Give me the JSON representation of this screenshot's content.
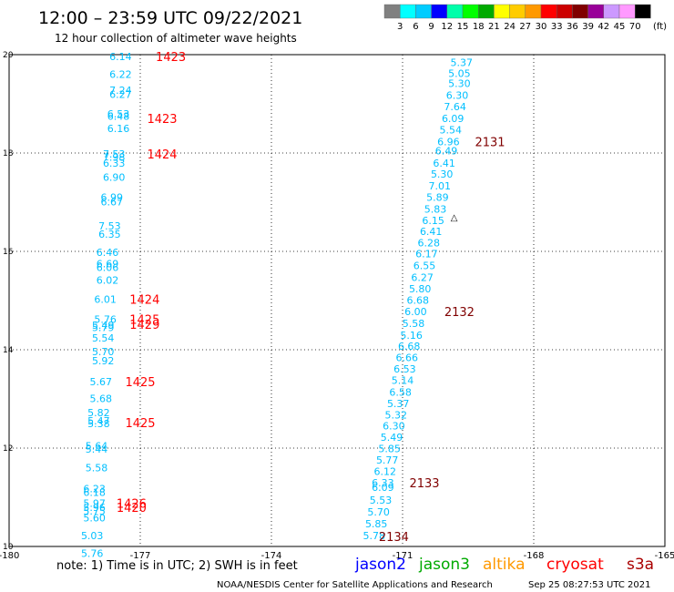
{
  "chart_data": {
    "type": "scatter",
    "title": "12:00 – 23:59 UTC 09/22/2021",
    "subtitle": "12 hour collection of altimeter wave heights",
    "xlim": [
      -180,
      -165
    ],
    "ylim": [
      10,
      20
    ],
    "x_ticks": [
      "-180",
      "-177",
      "-174",
      "-171",
      "-168",
      "-165"
    ],
    "y_ticks": [
      "10",
      "12",
      "14",
      "16",
      "18",
      "20"
    ],
    "grid": true,
    "colorbar": {
      "unit": "(ft)",
      "labels": [
        "3",
        "6",
        "9",
        "12",
        "15",
        "18",
        "21",
        "24",
        "27",
        "30",
        "33",
        "36",
        "39",
        "42",
        "45",
        "70"
      ],
      "colors": [
        "#808080",
        "#00ffff",
        "#00ccff",
        "#0000ff",
        "#00ffaa",
        "#00ff00",
        "#00aa00",
        "#ffff00",
        "#ffcc00",
        "#ff9900",
        "#ff0000",
        "#cc0000",
        "#800000",
        "#990099",
        "#cc99ff",
        "#ff99ff",
        "#000000"
      ]
    },
    "series": [
      {
        "name": "altimeter-track-1",
        "color": "#00bfff",
        "points": [
          {
            "x": -177.45,
            "y": 19.96,
            "v": "6.14"
          },
          {
            "x": -177.45,
            "y": 19.6,
            "v": "6.22"
          },
          {
            "x": -177.45,
            "y": 19.28,
            "v": "7.24"
          },
          {
            "x": -177.45,
            "y": 19.19,
            "v": "6.27"
          },
          {
            "x": -177.5,
            "y": 18.8,
            "v": "6.53"
          },
          {
            "x": -177.5,
            "y": 18.75,
            "v": "6.48"
          },
          {
            "x": -177.5,
            "y": 18.5,
            "v": "6.16"
          },
          {
            "x": -177.6,
            "y": 17.98,
            "v": "7.53"
          },
          {
            "x": -177.6,
            "y": 17.92,
            "v": "7.98"
          },
          {
            "x": -177.6,
            "y": 17.8,
            "v": "6.33"
          },
          {
            "x": -177.6,
            "y": 17.51,
            "v": "6.90"
          },
          {
            "x": -177.65,
            "y": 17.1,
            "v": "6.99"
          },
          {
            "x": -177.65,
            "y": 17.01,
            "v": "6.67"
          },
          {
            "x": -177.7,
            "y": 16.52,
            "v": "7.53"
          },
          {
            "x": -177.7,
            "y": 16.35,
            "v": "6.35"
          },
          {
            "x": -177.75,
            "y": 15.98,
            "v": "6.46"
          },
          {
            "x": -177.75,
            "y": 15.75,
            "v": "6.69"
          },
          {
            "x": -177.75,
            "y": 15.68,
            "v": "6.06"
          },
          {
            "x": -177.75,
            "y": 15.42,
            "v": "6.02"
          },
          {
            "x": -177.8,
            "y": 15.03,
            "v": "6.01"
          },
          {
            "x": -177.8,
            "y": 14.62,
            "v": "5.76"
          },
          {
            "x": -177.85,
            "y": 14.5,
            "v": "5.49"
          },
          {
            "x": -177.85,
            "y": 14.45,
            "v": "5.79"
          },
          {
            "x": -177.85,
            "y": 14.24,
            "v": "5.54"
          },
          {
            "x": -177.85,
            "y": 13.96,
            "v": "5.70"
          },
          {
            "x": -177.85,
            "y": 13.78,
            "v": "5.92"
          },
          {
            "x": -177.9,
            "y": 13.35,
            "v": "5.67"
          },
          {
            "x": -177.9,
            "y": 13.01,
            "v": "5.68"
          },
          {
            "x": -177.95,
            "y": 12.72,
            "v": "5.82"
          },
          {
            "x": -177.95,
            "y": 12.56,
            "v": "5.47"
          },
          {
            "x": -177.95,
            "y": 12.5,
            "v": "5.38"
          },
          {
            "x": -178.0,
            "y": 12.05,
            "v": "5.64"
          },
          {
            "x": -178.0,
            "y": 11.98,
            "v": "5.44"
          },
          {
            "x": -178.0,
            "y": 11.6,
            "v": "5.58"
          },
          {
            "x": -178.05,
            "y": 11.18,
            "v": "6.23"
          },
          {
            "x": -178.05,
            "y": 11.1,
            "v": "6.18"
          },
          {
            "x": -178.05,
            "y": 10.88,
            "v": "5.97"
          },
          {
            "x": -178.05,
            "y": 10.8,
            "v": "5.96"
          },
          {
            "x": -178.05,
            "y": 10.72,
            "v": "5.75"
          },
          {
            "x": -178.05,
            "y": 10.58,
            "v": "5.60"
          },
          {
            "x": -178.1,
            "y": 10.22,
            "v": "5.03"
          },
          {
            "x": -178.1,
            "y": 9.86,
            "v": "5.76"
          }
        ]
      },
      {
        "name": "altimeter-track-2",
        "color": "#00bfff",
        "points": [
          {
            "x": -169.65,
            "y": 19.84,
            "v": "5.37"
          },
          {
            "x": -169.7,
            "y": 19.62,
            "v": "5.05"
          },
          {
            "x": -169.7,
            "y": 19.42,
            "v": "5.30"
          },
          {
            "x": -169.75,
            "y": 19.18,
            "v": "6.30"
          },
          {
            "x": -169.8,
            "y": 18.94,
            "v": "7.64"
          },
          {
            "x": -169.85,
            "y": 18.7,
            "v": "6.09"
          },
          {
            "x": -169.9,
            "y": 18.47,
            "v": "5.54"
          },
          {
            "x": -169.95,
            "y": 18.23,
            "v": "6.96"
          },
          {
            "x": -170.0,
            "y": 18.05,
            "v": "6.49"
          },
          {
            "x": -170.05,
            "y": 17.8,
            "v": "6.41"
          },
          {
            "x": -170.1,
            "y": 17.57,
            "v": "5.30"
          },
          {
            "x": -170.15,
            "y": 17.33,
            "v": "7.01"
          },
          {
            "x": -170.2,
            "y": 17.1,
            "v": "5.89"
          },
          {
            "x": -170.25,
            "y": 16.86,
            "v": "5.83"
          },
          {
            "x": -170.3,
            "y": 16.63,
            "v": "6.15"
          },
          {
            "x": -170.35,
            "y": 16.41,
            "v": "6.41"
          },
          {
            "x": -170.4,
            "y": 16.18,
            "v": "6.28"
          },
          {
            "x": -170.45,
            "y": 15.95,
            "v": "6.17"
          },
          {
            "x": -170.5,
            "y": 15.71,
            "v": "6.55"
          },
          {
            "x": -170.55,
            "y": 15.47,
            "v": "6.27"
          },
          {
            "x": -170.6,
            "y": 15.24,
            "v": "5.80"
          },
          {
            "x": -170.65,
            "y": 15.01,
            "v": "6.68"
          },
          {
            "x": -170.7,
            "y": 14.78,
            "v": "6.00"
          },
          {
            "x": -170.75,
            "y": 14.54,
            "v": "5.58"
          },
          {
            "x": -170.8,
            "y": 14.3,
            "v": "5.16"
          },
          {
            "x": -170.85,
            "y": 14.07,
            "v": "6.68"
          },
          {
            "x": -170.9,
            "y": 13.84,
            "v": "6.66"
          },
          {
            "x": -170.95,
            "y": 13.61,
            "v": "6.53"
          },
          {
            "x": -171.0,
            "y": 13.38,
            "v": "5.14"
          },
          {
            "x": -171.05,
            "y": 13.14,
            "v": "6.58"
          },
          {
            "x": -171.1,
            "y": 12.91,
            "v": "5.37"
          },
          {
            "x": -171.15,
            "y": 12.68,
            "v": "5.32"
          },
          {
            "x": -171.2,
            "y": 12.45,
            "v": "6.30"
          },
          {
            "x": -171.25,
            "y": 12.22,
            "v": "5.49"
          },
          {
            "x": -171.3,
            "y": 11.99,
            "v": "5.85"
          },
          {
            "x": -171.35,
            "y": 11.76,
            "v": "5.77"
          },
          {
            "x": -171.4,
            "y": 11.53,
            "v": "6.12"
          },
          {
            "x": -171.45,
            "y": 11.3,
            "v": "6.33"
          },
          {
            "x": -171.45,
            "y": 11.2,
            "v": "6.09"
          },
          {
            "x": -171.5,
            "y": 10.94,
            "v": "5.53"
          },
          {
            "x": -171.55,
            "y": 10.7,
            "v": "5.70"
          },
          {
            "x": -171.6,
            "y": 10.46,
            "v": "5.85"
          },
          {
            "x": -171.65,
            "y": 10.22,
            "v": "5.78"
          }
        ]
      }
    ],
    "time_labels": [
      {
        "x": -176.3,
        "y": 19.96,
        "text": "1423",
        "color": "#ff0000"
      },
      {
        "x": -176.5,
        "y": 18.7,
        "text": "1423",
        "color": "#ff0000"
      },
      {
        "x": -176.5,
        "y": 17.98,
        "text": "1424",
        "color": "#ff0000"
      },
      {
        "x": -176.9,
        "y": 15.03,
        "text": "1424",
        "color": "#ff0000"
      },
      {
        "x": -176.9,
        "y": 14.62,
        "text": "1425",
        "color": "#ff0000"
      },
      {
        "x": -176.9,
        "y": 14.52,
        "text": "1429",
        "color": "#ff0000"
      },
      {
        "x": -177.0,
        "y": 13.35,
        "text": "1425",
        "color": "#ff0000"
      },
      {
        "x": -177.0,
        "y": 12.52,
        "text": "1425",
        "color": "#ff0000"
      },
      {
        "x": -177.2,
        "y": 10.88,
        "text": "1426",
        "color": "#ff0000"
      },
      {
        "x": -177.2,
        "y": 10.8,
        "text": "1420",
        "color": "#ff0000"
      },
      {
        "x": -169.0,
        "y": 18.23,
        "text": "2131",
        "color": "#800000"
      },
      {
        "x": -169.7,
        "y": 14.78,
        "text": "2132",
        "color": "#800000"
      },
      {
        "x": -170.5,
        "y": 11.3,
        "text": "2133",
        "color": "#800000"
      },
      {
        "x": -171.2,
        "y": 10.2,
        "text": "2134",
        "color": "#800000"
      }
    ],
    "marker": {
      "x": -169.9,
      "y": 16.7,
      "text": "△"
    },
    "note": "note: 1) Time is in UTC; 2) SWH is in feet",
    "satellites": [
      {
        "name": "jason2",
        "color": "#0000ff"
      },
      {
        "name": "jason3",
        "color": "#00aa00"
      },
      {
        "name": "altika",
        "color": "#ff9900"
      },
      {
        "name": "cryosat",
        "color": "#ff0000"
      },
      {
        "name": "s3a",
        "color": "#aa0000"
      }
    ],
    "footer": "NOAA/NESDIS Center for Satellite Applications and Research",
    "timestamp": "Sep 25 08:27:53 UTC 2021"
  }
}
